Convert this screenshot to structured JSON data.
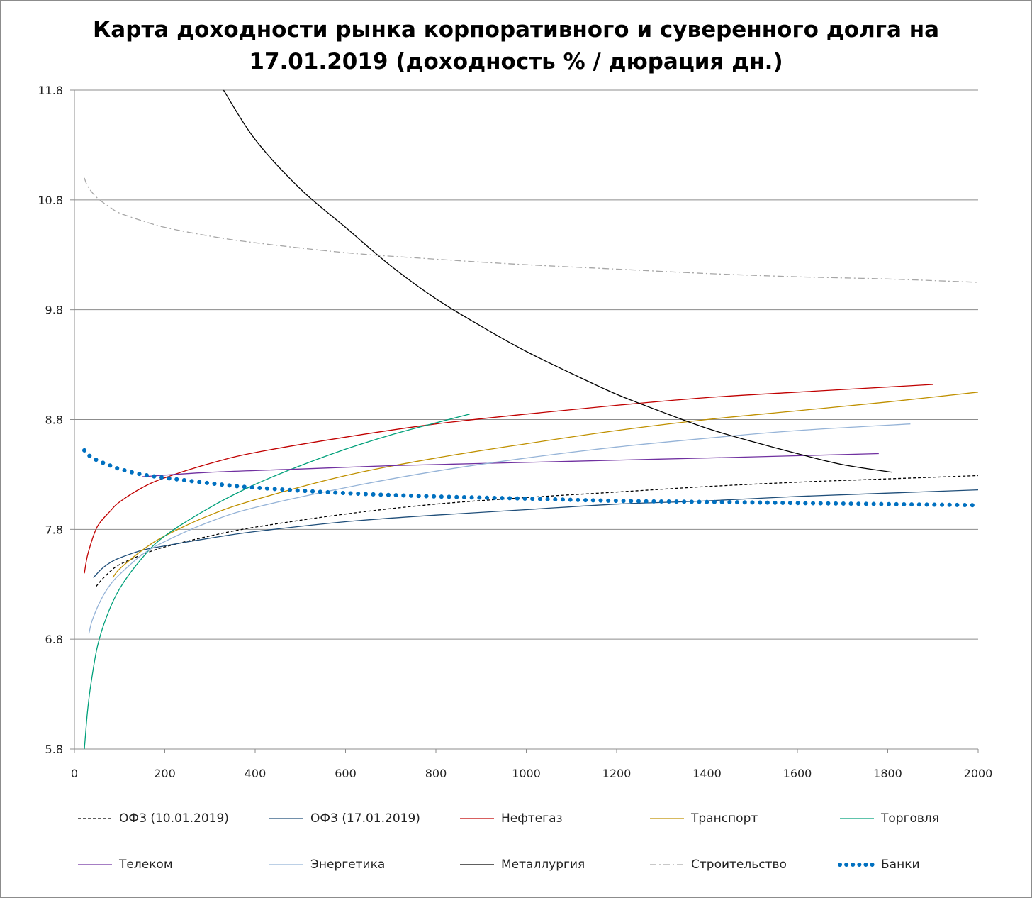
{
  "chart_data": {
    "type": "line",
    "title_lines": [
      "Карта доходности рынка корпоративного и суверенного долга на",
      "17.01.2019 (доходность % / дюрация дн.)"
    ],
    "xlabel": "",
    "ylabel": "",
    "xlim": [
      0,
      2000
    ],
    "ylim": [
      5.8,
      11.8
    ],
    "x_ticks": [
      "0",
      "200",
      "400",
      "600",
      "800",
      "1000",
      "1200",
      "1400",
      "1600",
      "1800",
      "2000"
    ],
    "y_ticks": [
      "5.8",
      "6.8",
      "7.8",
      "8.8",
      "9.8",
      "10.8",
      "11.8"
    ],
    "grid": "horizontal",
    "legend_position": "bottom",
    "series": [
      {
        "name": "ОФЗ (10.01.2019)",
        "color": "#000000",
        "style": "dash",
        "points": [
          [
            48,
            7.28
          ],
          [
            60,
            7.34
          ],
          [
            80,
            7.42
          ],
          [
            100,
            7.48
          ],
          [
            150,
            7.57
          ],
          [
            200,
            7.64
          ],
          [
            300,
            7.74
          ],
          [
            400,
            7.82
          ],
          [
            600,
            7.94
          ],
          [
            800,
            8.03
          ],
          [
            1000,
            8.09
          ],
          [
            1200,
            8.14
          ],
          [
            1400,
            8.19
          ],
          [
            1600,
            8.23
          ],
          [
            1800,
            8.26
          ],
          [
            2000,
            8.29
          ]
        ]
      },
      {
        "name": "ОФЗ (17.01.2019)",
        "color": "#1f4e79",
        "style": "solid",
        "points": [
          [
            42,
            7.36
          ],
          [
            60,
            7.44
          ],
          [
            80,
            7.5
          ],
          [
            100,
            7.54
          ],
          [
            150,
            7.61
          ],
          [
            200,
            7.65
          ],
          [
            300,
            7.72
          ],
          [
            400,
            7.78
          ],
          [
            600,
            7.87
          ],
          [
            800,
            7.93
          ],
          [
            1000,
            7.98
          ],
          [
            1200,
            8.03
          ],
          [
            1400,
            8.06
          ],
          [
            1600,
            8.1
          ],
          [
            1800,
            8.13
          ],
          [
            2000,
            8.16
          ]
        ]
      },
      {
        "name": "Нефтегаз",
        "color": "#c00000",
        "style": "solid",
        "points": [
          [
            22,
            7.4
          ],
          [
            30,
            7.58
          ],
          [
            50,
            7.82
          ],
          [
            80,
            7.97
          ],
          [
            100,
            8.05
          ],
          [
            150,
            8.18
          ],
          [
            200,
            8.27
          ],
          [
            300,
            8.4
          ],
          [
            400,
            8.5
          ],
          [
            600,
            8.64
          ],
          [
            800,
            8.76
          ],
          [
            1000,
            8.85
          ],
          [
            1200,
            8.93
          ],
          [
            1400,
            9.0
          ],
          [
            1600,
            9.05
          ],
          [
            1900,
            9.12
          ]
        ]
      },
      {
        "name": "Транспорт",
        "color": "#bf9000",
        "style": "solid",
        "points": [
          [
            85,
            7.36
          ],
          [
            100,
            7.44
          ],
          [
            150,
            7.61
          ],
          [
            200,
            7.74
          ],
          [
            300,
            7.93
          ],
          [
            400,
            8.07
          ],
          [
            600,
            8.29
          ],
          [
            800,
            8.45
          ],
          [
            1000,
            8.58
          ],
          [
            1200,
            8.7
          ],
          [
            1400,
            8.8
          ],
          [
            1600,
            8.88
          ],
          [
            1800,
            8.96
          ],
          [
            2000,
            9.05
          ]
        ]
      },
      {
        "name": "Торговля",
        "color": "#00a07a",
        "style": "solid",
        "points": [
          [
            22,
            5.8
          ],
          [
            28,
            6.1
          ],
          [
            35,
            6.35
          ],
          [
            50,
            6.72
          ],
          [
            70,
            6.99
          ],
          [
            100,
            7.26
          ],
          [
            150,
            7.54
          ],
          [
            200,
            7.74
          ],
          [
            300,
            8.0
          ],
          [
            400,
            8.21
          ],
          [
            500,
            8.38
          ],
          [
            600,
            8.53
          ],
          [
            700,
            8.66
          ],
          [
            800,
            8.77
          ],
          [
            875,
            8.85
          ]
        ]
      },
      {
        "name": "Телеком",
        "color": "#7030a0",
        "style": "solid",
        "points": [
          [
            150,
            8.28
          ],
          [
            300,
            8.32
          ],
          [
            500,
            8.35
          ],
          [
            700,
            8.38
          ],
          [
            900,
            8.4
          ],
          [
            1100,
            8.42
          ],
          [
            1300,
            8.44
          ],
          [
            1500,
            8.46
          ],
          [
            1780,
            8.49
          ]
        ]
      },
      {
        "name": "Энергетика",
        "color": "#95b3d7",
        "style": "solid",
        "points": [
          [
            32,
            6.85
          ],
          [
            40,
            6.98
          ],
          [
            60,
            7.17
          ],
          [
            80,
            7.3
          ],
          [
            100,
            7.39
          ],
          [
            150,
            7.57
          ],
          [
            200,
            7.69
          ],
          [
            300,
            7.87
          ],
          [
            400,
            8.0
          ],
          [
            600,
            8.18
          ],
          [
            800,
            8.33
          ],
          [
            1000,
            8.45
          ],
          [
            1200,
            8.55
          ],
          [
            1400,
            8.63
          ],
          [
            1600,
            8.7
          ],
          [
            1850,
            8.76
          ]
        ]
      },
      {
        "name": "Металлургия",
        "color": "#000000",
        "style": "solid",
        "points": [
          [
            330,
            11.8
          ],
          [
            400,
            11.35
          ],
          [
            500,
            10.9
          ],
          [
            600,
            10.55
          ],
          [
            700,
            10.2
          ],
          [
            800,
            9.9
          ],
          [
            900,
            9.65
          ],
          [
            1000,
            9.42
          ],
          [
            1100,
            9.22
          ],
          [
            1200,
            9.03
          ],
          [
            1300,
            8.87
          ],
          [
            1400,
            8.72
          ],
          [
            1500,
            8.6
          ],
          [
            1600,
            8.49
          ],
          [
            1700,
            8.39
          ],
          [
            1810,
            8.32
          ]
        ]
      },
      {
        "name": "Строительство",
        "color": "#a6a6a6",
        "style": "dashdot",
        "points": [
          [
            22,
            11.0
          ],
          [
            30,
            10.92
          ],
          [
            50,
            10.82
          ],
          [
            80,
            10.73
          ],
          [
            100,
            10.68
          ],
          [
            150,
            10.61
          ],
          [
            200,
            10.55
          ],
          [
            300,
            10.47
          ],
          [
            400,
            10.41
          ],
          [
            600,
            10.32
          ],
          [
            800,
            10.26
          ],
          [
            1000,
            10.21
          ],
          [
            1200,
            10.17
          ],
          [
            1400,
            10.13
          ],
          [
            1600,
            10.1
          ],
          [
            1800,
            10.08
          ],
          [
            2000,
            10.05
          ]
        ]
      },
      {
        "name": "Банки",
        "color": "#0070c0",
        "style": "dot",
        "points": [
          [
            22,
            8.52
          ],
          [
            30,
            8.48
          ],
          [
            50,
            8.43
          ],
          [
            80,
            8.38
          ],
          [
            100,
            8.35
          ],
          [
            150,
            8.3
          ],
          [
            200,
            8.27
          ],
          [
            300,
            8.22
          ],
          [
            400,
            8.18
          ],
          [
            600,
            8.13
          ],
          [
            800,
            8.1
          ],
          [
            1000,
            8.08
          ],
          [
            1200,
            8.06
          ],
          [
            1400,
            8.05
          ],
          [
            1600,
            8.04
          ],
          [
            1800,
            8.03
          ],
          [
            2000,
            8.02
          ]
        ]
      }
    ]
  }
}
